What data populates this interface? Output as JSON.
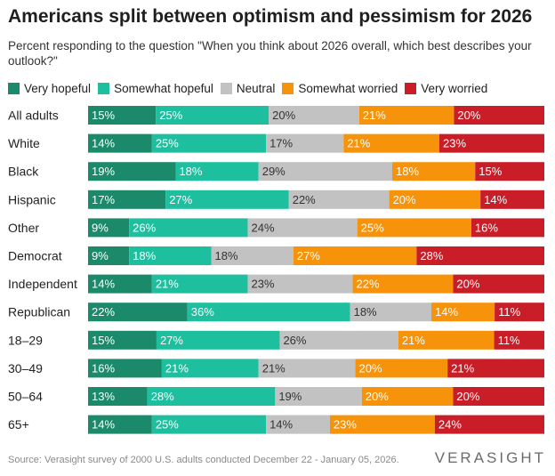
{
  "title": "Americans split between optimism and pessimism for 2026",
  "subtitle": "Percent responding to the question \"When you think about 2026 overall, which best describes your outlook?\"",
  "source": "Source: Verasight survey of 2000 U.S. adults conducted December 22 - January 05, 2026.",
  "brand": "VERASIGHT",
  "colors": {
    "very_hopeful": "#1b8a6b",
    "somewhat_hopeful": "#1dbf9f",
    "neutral": "#c2c2c2",
    "somewhat_worried": "#f7930b",
    "very_worried": "#c91d27"
  },
  "chart_data": {
    "type": "bar",
    "orientation": "horizontal",
    "stacked": true,
    "unit": "%",
    "categories": [
      "All adults",
      "White",
      "Black",
      "Hispanic",
      "Other",
      "Democrat",
      "Independent",
      "Republican",
      "18–29",
      "30–49",
      "50–64",
      "65+"
    ],
    "series": [
      {
        "name": "Very hopeful",
        "color": "#1b8a6b",
        "label_color": "#ffffff",
        "values": [
          15,
          14,
          19,
          17,
          9,
          9,
          14,
          22,
          15,
          16,
          13,
          14
        ]
      },
      {
        "name": "Somewhat hopeful",
        "color": "#1dbf9f",
        "label_color": "#ffffff",
        "values": [
          25,
          25,
          18,
          27,
          26,
          18,
          21,
          36,
          27,
          21,
          28,
          25
        ]
      },
      {
        "name": "Neutral",
        "color": "#c2c2c2",
        "label_color": "#333333",
        "values": [
          20,
          17,
          29,
          22,
          24,
          18,
          23,
          18,
          26,
          21,
          19,
          14
        ]
      },
      {
        "name": "Somewhat worried",
        "color": "#f7930b",
        "label_color": "#ffffff",
        "values": [
          21,
          21,
          18,
          20,
          25,
          27,
          22,
          14,
          21,
          20,
          20,
          23
        ]
      },
      {
        "name": "Very worried",
        "color": "#c91d27",
        "label_color": "#ffffff",
        "values": [
          20,
          23,
          15,
          14,
          16,
          28,
          20,
          11,
          11,
          21,
          20,
          24
        ]
      }
    ],
    "legend_position": "top-left",
    "grid": false
  }
}
